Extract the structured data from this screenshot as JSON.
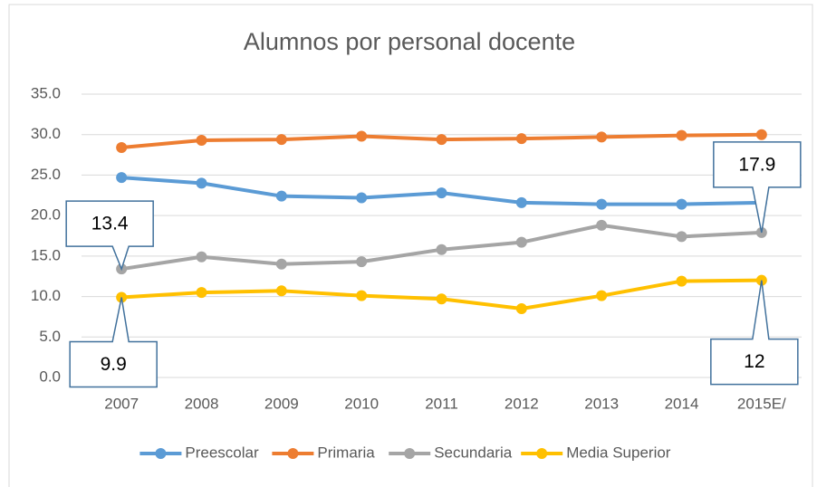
{
  "chart_data": {
    "type": "line",
    "title": "Alumnos por personal docente",
    "categories": [
      "2007",
      "2008",
      "2009",
      "2010",
      "2011",
      "2012",
      "2013",
      "2014",
      "2015E/"
    ],
    "series": [
      {
        "name": "Preescolar",
        "color": "#5b9bd5",
        "values": [
          24.7,
          24.0,
          22.4,
          22.2,
          22.8,
          21.6,
          21.4,
          21.4,
          21.6
        ]
      },
      {
        "name": "Primaria",
        "color": "#ed7d31",
        "values": [
          28.4,
          29.3,
          29.4,
          29.8,
          29.4,
          29.5,
          29.7,
          29.9,
          30.0
        ]
      },
      {
        "name": "Secundaria",
        "color": "#a5a5a5",
        "values": [
          13.4,
          14.9,
          14.0,
          14.3,
          15.8,
          16.7,
          18.8,
          17.4,
          17.9
        ],
        "value_labels": [
          "13.4",
          null,
          null,
          null,
          null,
          null,
          null,
          null,
          "17.9"
        ]
      },
      {
        "name": "Media Superior",
        "color": "#ffc000",
        "values": [
          9.9,
          10.5,
          10.7,
          10.1,
          9.7,
          8.5,
          10.1,
          11.9,
          12
        ],
        "value_labels": [
          "9.9",
          null,
          null,
          null,
          null,
          null,
          null,
          null,
          "12"
        ]
      }
    ],
    "ylim": [
      0,
      35
    ],
    "yticks": [
      {
        "value": 0,
        "label": "0.0"
      },
      {
        "value": 5,
        "label": "5.0"
      },
      {
        "value": 10,
        "label": "10.0"
      },
      {
        "value": 15,
        "label": "15.0"
      },
      {
        "value": 20,
        "label": "20.0"
      },
      {
        "value": 25,
        "label": "25.0"
      },
      {
        "value": 30,
        "label": "30.0"
      },
      {
        "value": 35,
        "label": "35.0"
      }
    ],
    "grid": true,
    "legend": "bottom"
  }
}
